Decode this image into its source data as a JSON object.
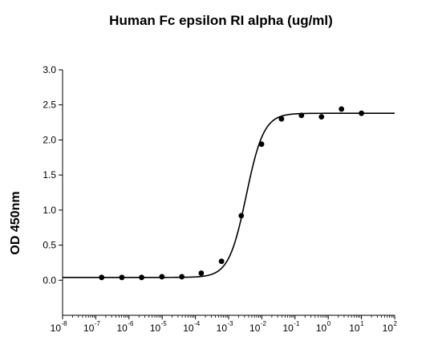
{
  "chart_data": {
    "type": "scatter",
    "title": "Human Fc epsilon RI alpha (ug/ml)",
    "ylabel": "OD 450nm",
    "xlabel": "",
    "xscale": "log",
    "xlim": [
      1e-08,
      100
    ],
    "ylim": [
      -0.5,
      3.0
    ],
    "y_ticks": [
      "0.0",
      "0.5",
      "1.0",
      "1.5",
      "2.0",
      "2.5",
      "3.0"
    ],
    "x_ticks": [
      {
        "base": "10",
        "exp": "-8"
      },
      {
        "base": "10",
        "exp": "-7"
      },
      {
        "base": "10",
        "exp": "-6"
      },
      {
        "base": "10",
        "exp": "-5"
      },
      {
        "base": "10",
        "exp": "-4"
      },
      {
        "base": "10",
        "exp": "-3"
      },
      {
        "base": "10",
        "exp": "-2"
      },
      {
        "base": "10",
        "exp": "-1"
      },
      {
        "base": "10",
        "exp": "0"
      },
      {
        "base": "10",
        "exp": "1"
      },
      {
        "base": "10",
        "exp": "2"
      }
    ],
    "grid": false,
    "series": [
      {
        "points": [
          {
            "x": 1.5e-07,
            "y": 0.04
          },
          {
            "x": 6.1e-07,
            "y": 0.04
          },
          {
            "x": 2.4e-06,
            "y": 0.04
          },
          {
            "x": 9.8e-06,
            "y": 0.05
          },
          {
            "x": 3.9e-05,
            "y": 0.05
          },
          {
            "x": 0.00015,
            "y": 0.1
          },
          {
            "x": 0.00061,
            "y": 0.27
          },
          {
            "x": 0.0024,
            "y": 0.92
          },
          {
            "x": 0.0098,
            "y": 1.94
          },
          {
            "x": 0.039,
            "y": 2.3
          },
          {
            "x": 0.156,
            "y": 2.35
          },
          {
            "x": 0.625,
            "y": 2.33
          },
          {
            "x": 2.5,
            "y": 2.44
          },
          {
            "x": 10,
            "y": 2.38
          }
        ],
        "fit": {
          "model": "4PL",
          "bottom": 0.04,
          "top": 2.38,
          "ec50": 0.0034,
          "hill": 1.65
        },
        "color": "#000000"
      }
    ]
  }
}
